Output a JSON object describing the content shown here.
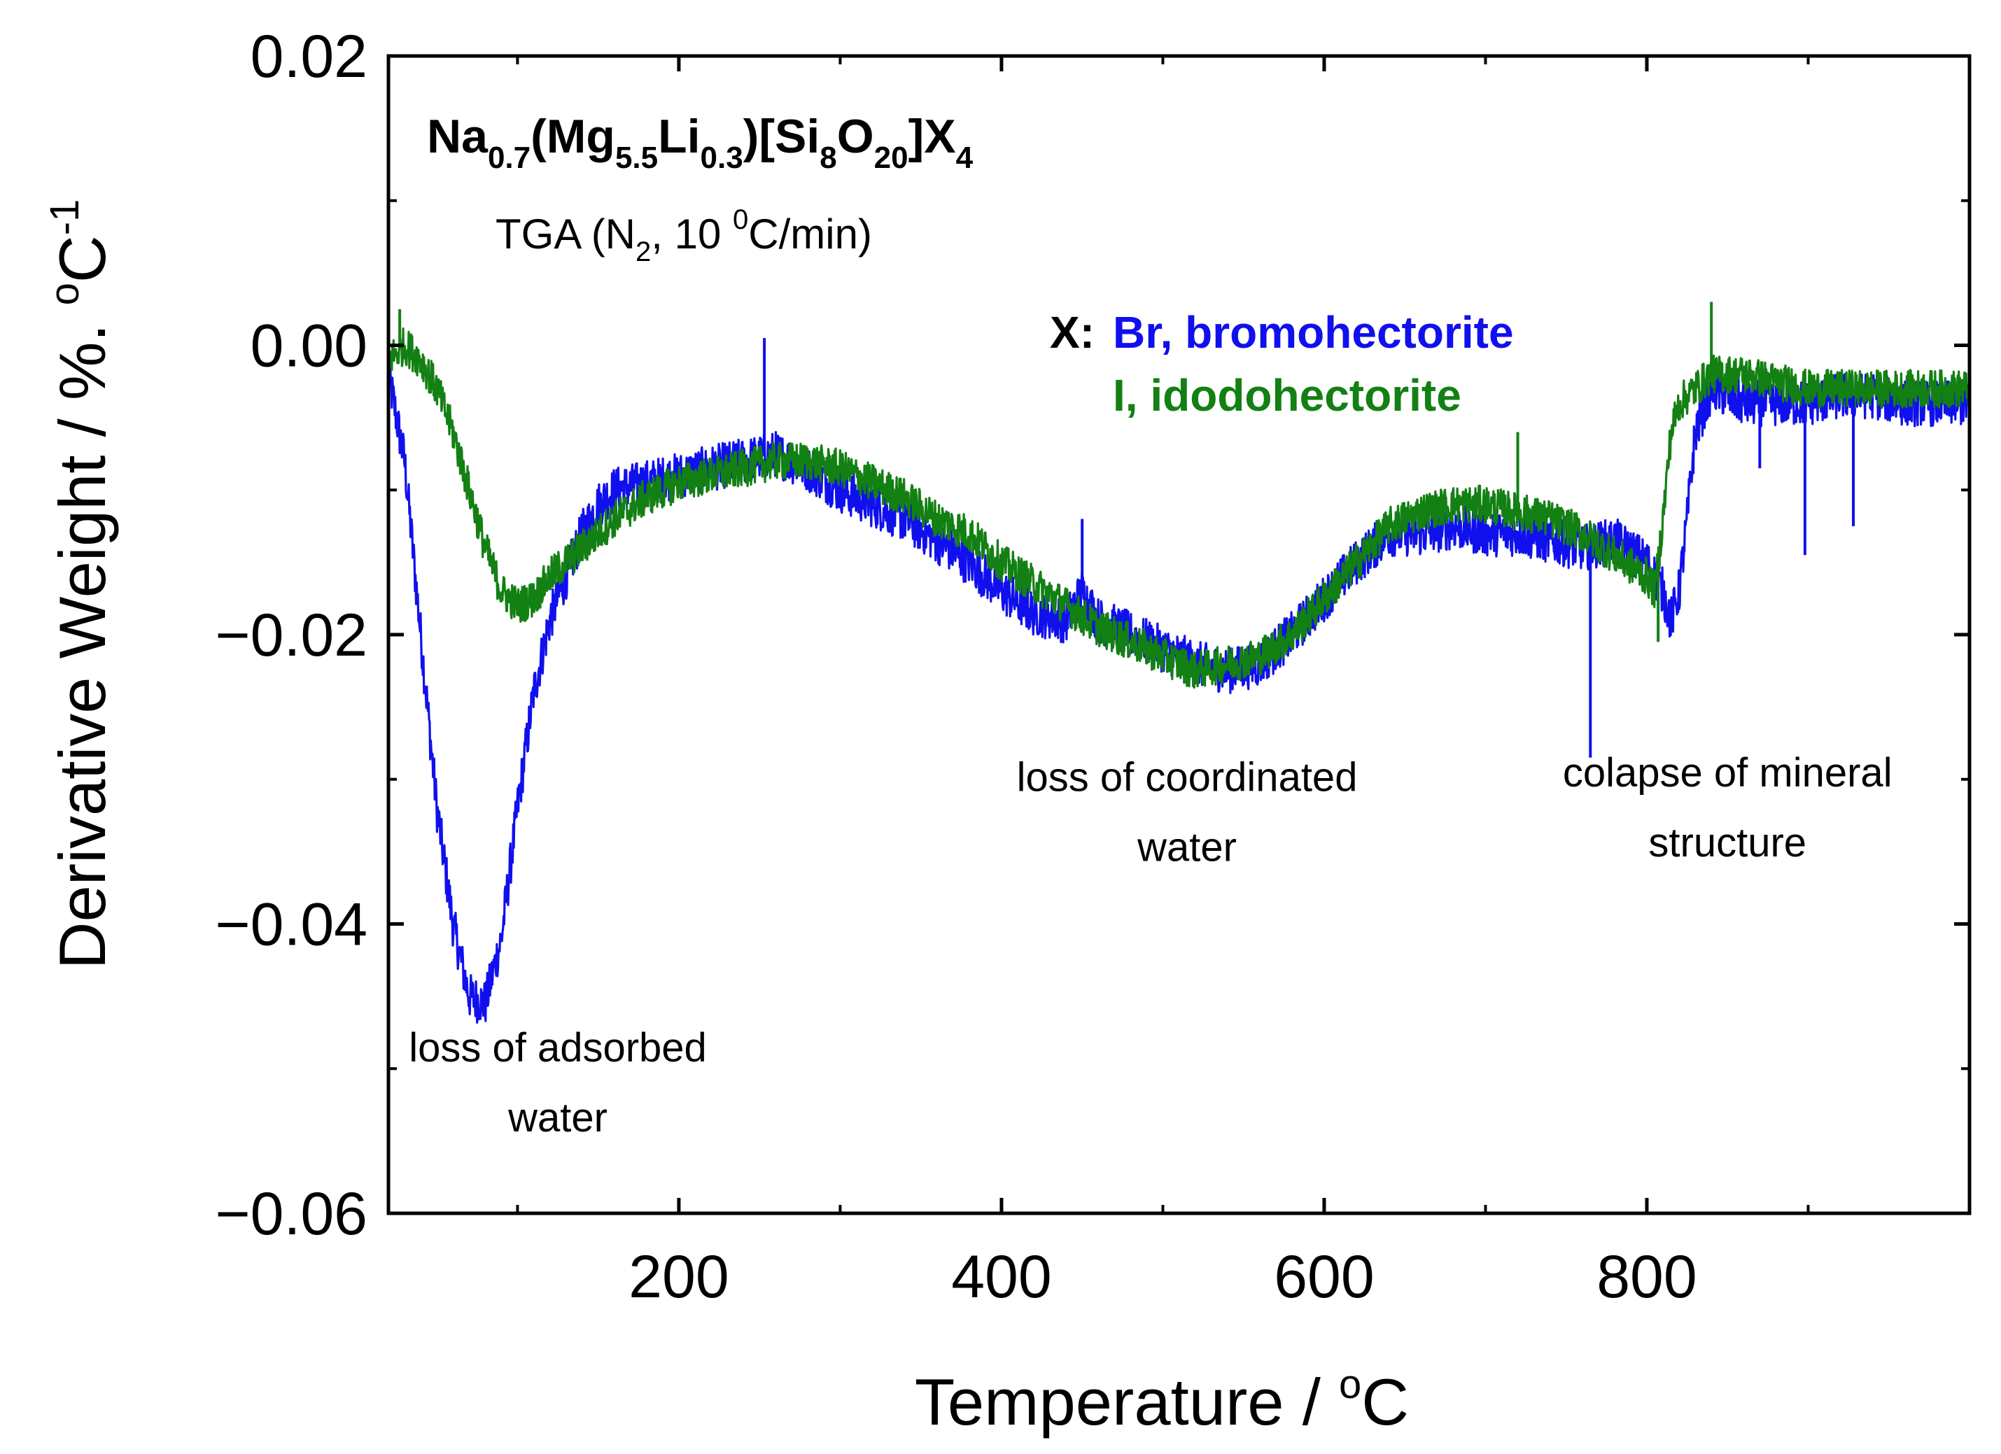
{
  "chart_data": {
    "type": "line",
    "title": "Na0.7(Mg5.5Li0.3)[Si8O20]X4",
    "title_parts": {
      "t0": "Na",
      "s0": "0.7",
      "t1": "(Mg",
      "s1": "5.5",
      "t2": "Li",
      "s2": "0.3",
      "t3": ")[Si",
      "s3": "8",
      "t4": "O",
      "s4": "20",
      "t5": "]X",
      "s5": "4"
    },
    "subtitle": "TGA (N2, 10 oC/min)",
    "subtitle_parts": {
      "a": "TGA (N",
      "b": "2",
      "c": ", 10 ",
      "d": "0",
      "e": "C/min)"
    },
    "xlabel": "Temperature / oC",
    "xlabel_parts": {
      "a": "Temperature / ",
      "b": "o",
      "c": "C"
    },
    "ylabel": "Derivative Weight / %. oC-1",
    "ylabel_parts": {
      "a": "Derivative Weight / %. ",
      "b": "o",
      "c": "C",
      "d": "-1"
    },
    "xlim": [
      20,
      1000
    ],
    "ylim": [
      -0.06,
      0.02
    ],
    "x_ticks": [
      200,
      400,
      600,
      800
    ],
    "x_tick_labels": [
      "200",
      "400",
      "600",
      "800"
    ],
    "y_ticks": [
      0.02,
      0.0,
      -0.02,
      -0.04,
      -0.06
    ],
    "y_tick_labels": [
      "0.02",
      "0.00",
      "−0.02",
      "−0.04",
      "−0.06"
    ],
    "legend": {
      "prefix": "X:",
      "entries": [
        {
          "label": "Br, bromohectorite",
          "color": "#1010ee"
        },
        {
          "label": "I, idodohectorite",
          "color": "#138013"
        }
      ]
    },
    "annotations": [
      {
        "lines": [
          "loss of adsorbed",
          "water"
        ],
        "x": 125,
        "y": -0.0495
      },
      {
        "lines": [
          "loss of coordinated",
          "water"
        ],
        "x": 515,
        "y": -0.0308
      },
      {
        "lines": [
          "colapse of mineral",
          "structure"
        ],
        "x": 850,
        "y": -0.0305
      }
    ],
    "series": [
      {
        "name": "Br, bromohectorite",
        "color": "#1010ee",
        "noise": 0.0016,
        "x": [
          20,
          30,
          40,
          50,
          60,
          70,
          80,
          90,
          100,
          110,
          120,
          130,
          140,
          150,
          160,
          180,
          200,
          220,
          240,
          260,
          280,
          300,
          320,
          340,
          360,
          380,
          400,
          420,
          440,
          450,
          460,
          480,
          500,
          520,
          540,
          560,
          580,
          600,
          620,
          640,
          660,
          680,
          700,
          720,
          740,
          760,
          780,
          800,
          810,
          815,
          820,
          825,
          830,
          840,
          860,
          880,
          900,
          920,
          940,
          960,
          980,
          1000
        ],
        "y": [
          -0.002,
          -0.008,
          -0.02,
          -0.032,
          -0.04,
          -0.045,
          -0.0455,
          -0.041,
          -0.032,
          -0.024,
          -0.019,
          -0.016,
          -0.013,
          -0.011,
          -0.01,
          -0.0095,
          -0.009,
          -0.0085,
          -0.008,
          -0.0075,
          -0.0085,
          -0.01,
          -0.011,
          -0.012,
          -0.0135,
          -0.015,
          -0.017,
          -0.0185,
          -0.019,
          -0.017,
          -0.019,
          -0.02,
          -0.021,
          -0.022,
          -0.0225,
          -0.022,
          -0.02,
          -0.0175,
          -0.015,
          -0.013,
          -0.013,
          -0.0125,
          -0.013,
          -0.013,
          -0.0135,
          -0.014,
          -0.0135,
          -0.015,
          -0.017,
          -0.019,
          -0.017,
          -0.012,
          -0.006,
          -0.003,
          -0.004,
          -0.004,
          -0.004,
          -0.0035,
          -0.0035,
          -0.004,
          -0.004,
          -0.004
        ]
      },
      {
        "name": "I, idodohectorite",
        "color": "#138013",
        "noise": 0.0013,
        "x": [
          20,
          30,
          40,
          50,
          60,
          70,
          80,
          90,
          100,
          110,
          120,
          140,
          160,
          180,
          200,
          220,
          240,
          260,
          280,
          300,
          320,
          340,
          360,
          380,
          400,
          420,
          440,
          460,
          480,
          500,
          520,
          540,
          560,
          580,
          600,
          620,
          640,
          660,
          680,
          700,
          720,
          740,
          760,
          780,
          800,
          805,
          810,
          815,
          820,
          830,
          840,
          860,
          880,
          900,
          920,
          940,
          960,
          980,
          1000
        ],
        "y": [
          -0.001,
          0.0,
          -0.001,
          -0.003,
          -0.006,
          -0.01,
          -0.014,
          -0.017,
          -0.018,
          -0.0175,
          -0.016,
          -0.014,
          -0.012,
          -0.0105,
          -0.0095,
          -0.009,
          -0.0085,
          -0.008,
          -0.008,
          -0.0085,
          -0.0095,
          -0.0105,
          -0.012,
          -0.013,
          -0.015,
          -0.0165,
          -0.018,
          -0.0195,
          -0.0205,
          -0.0215,
          -0.0225,
          -0.022,
          -0.0215,
          -0.02,
          -0.0175,
          -0.015,
          -0.0125,
          -0.0115,
          -0.011,
          -0.011,
          -0.0115,
          -0.012,
          -0.013,
          -0.0145,
          -0.016,
          -0.017,
          -0.012,
          -0.006,
          -0.004,
          -0.003,
          -0.002,
          -0.002,
          -0.0025,
          -0.003,
          -0.003,
          -0.003,
          -0.003,
          -0.003,
          -0.003
        ]
      }
    ],
    "spikes": [
      {
        "series": 0,
        "x": 765,
        "y": -0.0285
      },
      {
        "series": 0,
        "x": 898,
        "y": -0.0145
      },
      {
        "series": 0,
        "x": 928,
        "y": -0.0125
      },
      {
        "series": 0,
        "x": 870,
        "y": -0.0085
      },
      {
        "series": 0,
        "x": 253,
        "y": 0.0005
      },
      {
        "series": 0,
        "x": 450,
        "y": -0.012
      },
      {
        "series": 1,
        "x": 27,
        "y": 0.0025
      },
      {
        "series": 1,
        "x": 840,
        "y": 0.003
      },
      {
        "series": 1,
        "x": 807,
        "y": -0.0205
      },
      {
        "series": 1,
        "x": 720,
        "y": -0.006
      }
    ]
  }
}
